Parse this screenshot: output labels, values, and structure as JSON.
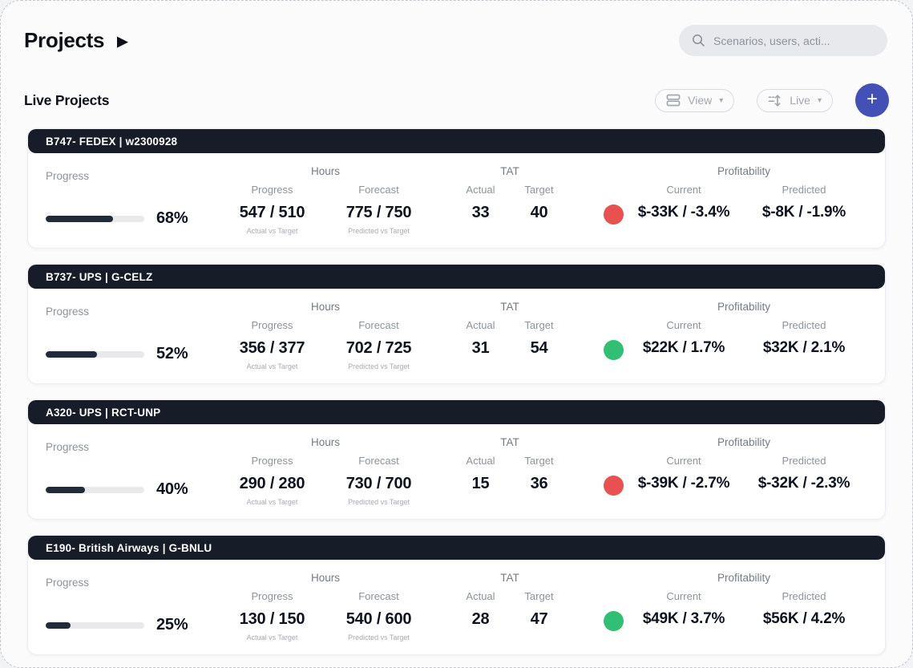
{
  "header": {
    "title": "Projects",
    "title_arrow": "▶",
    "search_placeholder": "Scenarios, users, acti..."
  },
  "toolbar": {
    "section_title": "Live Projects",
    "view_label": "View",
    "live_label": "Live",
    "add_label": "+"
  },
  "labels": {
    "progress": "Progress",
    "hours": "Hours",
    "hours_progress": "Progress",
    "hours_forecast": "Forecast",
    "actual_vs_target": "Actual vs Target",
    "predicted_vs_target": "Predicted vs Target",
    "tat": "TAT",
    "tat_actual": "Actual",
    "tat_target": "Target",
    "profitability": "Profitability",
    "profit_current": "Current",
    "profit_predicted": "Predicted"
  },
  "colors": {
    "accent_blue": "#4350b5",
    "card_header_dark": "#161c28",
    "progress_fill": "#222b3a",
    "status_red": "#e8514f",
    "status_green": "#30bf73"
  },
  "projects": [
    {
      "name": "B747- FEDEX | w2300928",
      "progress_label": "68%",
      "progress_value": 68,
      "hours_progress": "547 / 510",
      "hours_forecast": "775 / 750",
      "tat_actual": "33",
      "tat_target": "40",
      "status": "behind",
      "status_color": "#e8514f",
      "profit_current": "$-33K / -3.4%",
      "profit_predicted": "$-8K / -1.9%"
    },
    {
      "name": "B737- UPS | G-CELZ",
      "progress_label": "52%",
      "progress_value": 52,
      "hours_progress": "356 / 377",
      "hours_forecast": "702 / 725",
      "tat_actual": "31",
      "tat_target": "54",
      "status": "on-track",
      "status_color": "#30bf73",
      "profit_current": "$22K / 1.7%",
      "profit_predicted": "$32K / 2.1%"
    },
    {
      "name": "A320- UPS | RCT-UNP",
      "progress_label": "40%",
      "progress_value": 40,
      "hours_progress": "290 / 280",
      "hours_forecast": "730 / 700",
      "tat_actual": "15",
      "tat_target": "36",
      "status": "behind",
      "status_color": "#e8514f",
      "profit_current": "$-39K / -2.7%",
      "profit_predicted": "$-32K / -2.3%"
    },
    {
      "name": "E190- British Airways | G-BNLU",
      "progress_label": "25%",
      "progress_value": 25,
      "hours_progress": "130 / 150",
      "hours_forecast": "540 / 600",
      "tat_actual": "28",
      "tat_target": "47",
      "status": "on-track",
      "status_color": "#30bf73",
      "profit_current": "$49K / 3.7%",
      "profit_predicted": "$56K / 4.2%"
    }
  ]
}
